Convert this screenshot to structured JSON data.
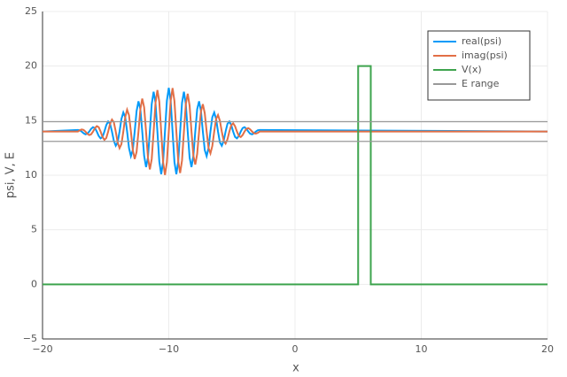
{
  "chart_data": {
    "type": "line",
    "xlabel": "x",
    "ylabel": "psi, V, E",
    "xlim": [
      -20,
      20
    ],
    "ylim": [
      -5,
      25
    ],
    "xticks": [
      {
        "value": -20,
        "label": "−20"
      },
      {
        "value": -10,
        "label": "−10"
      },
      0,
      10,
      20
    ],
    "yticks": [
      {
        "value": -5,
        "label": "−5"
      },
      0,
      5,
      10,
      15,
      20,
      25
    ],
    "grid": true,
    "legend": "top-right",
    "series": [
      {
        "name": "real(psi)",
        "color": "#009af9",
        "x": [
          -20,
          -17.2,
          -17.05,
          -16.9,
          -16.75,
          -16.6,
          -16.45,
          -16.3,
          -16.15,
          -16,
          -15.85,
          -15.7,
          -15.55,
          -15.4,
          -15.25,
          -15.1,
          -14.95,
          -14.8,
          -14.65,
          -14.5,
          -14.35,
          -14.2,
          -14.05,
          -13.9,
          -13.75,
          -13.6,
          -13.45,
          -13.3,
          -13.15,
          -13,
          -12.85,
          -12.7,
          -12.55,
          -12.4,
          -12.25,
          -12.1,
          -11.95,
          -11.8,
          -11.65,
          -11.5,
          -11.35,
          -11.2,
          -11.05,
          -10.9,
          -10.75,
          -10.6,
          -10.45,
          -10.3,
          -10.15,
          -10,
          -9.85,
          -9.7,
          -9.55,
          -9.4,
          -9.25,
          -9.1,
          -8.95,
          -8.8,
          -8.65,
          -8.5,
          -8.35,
          -8.2,
          -8.05,
          -7.9,
          -7.75,
          -7.6,
          -7.45,
          -7.3,
          -7.15,
          -7,
          -6.85,
          -6.7,
          -6.55,
          -6.4,
          -6.25,
          -6.1,
          -5.95,
          -5.8,
          -5.65,
          -5.5,
          -5.35,
          -5.2,
          -5.05,
          -4.9,
          -4.75,
          -4.6,
          -4.45,
          -4.3,
          -4.15,
          -4,
          -3.85,
          -3.7,
          -3.55,
          -3.4,
          -3.25,
          -3.1,
          -2.95,
          -2.8,
          20
        ],
        "values": [
          14,
          14.15,
          14.12,
          14,
          13.85,
          13.75,
          13.8,
          14,
          14.25,
          14.4,
          14.32,
          14,
          13.6,
          13.38,
          13.51,
          14,
          14.59,
          14.92,
          14.71,
          14,
          13.15,
          12.7,
          13.01,
          14,
          15.15,
          15.75,
          15.32,
          14,
          12.5,
          11.75,
          12.31,
          14,
          15.87,
          16.77,
          16.05,
          14,
          11.78,
          10.75,
          11.62,
          14,
          16.52,
          17.65,
          16.64,
          14,
          11.27,
          10.09,
          11.21,
          14,
          16.82,
          18,
          16.82,
          14,
          11.21,
          10.09,
          11.27,
          14,
          16.64,
          17.65,
          16.52,
          14,
          11.62,
          10.75,
          11.78,
          14,
          16.05,
          16.77,
          15.87,
          14,
          12.31,
          11.75,
          12.5,
          14,
          15.32,
          15.75,
          15.15,
          14,
          13.01,
          12.7,
          13.15,
          14,
          14.71,
          14.92,
          14.59,
          14,
          13.51,
          13.38,
          13.6,
          14,
          14.32,
          14.4,
          14.25,
          14,
          13.8,
          13.75,
          13.85,
          14,
          14.12,
          14.15,
          14
        ]
      },
      {
        "name": "imag(psi)",
        "color": "#e26f46",
        "x": [
          -20,
          -17.2,
          -17.05,
          -16.9,
          -16.75,
          -16.6,
          -16.45,
          -16.3,
          -16.15,
          -16,
          -15.85,
          -15.7,
          -15.55,
          -15.4,
          -15.25,
          -15.1,
          -14.95,
          -14.8,
          -14.65,
          -14.5,
          -14.35,
          -14.2,
          -14.05,
          -13.9,
          -13.75,
          -13.6,
          -13.45,
          -13.3,
          -13.15,
          -13,
          -12.85,
          -12.7,
          -12.55,
          -12.4,
          -12.25,
          -12.1,
          -11.95,
          -11.8,
          -11.65,
          -11.5,
          -11.35,
          -11.2,
          -11.05,
          -10.9,
          -10.75,
          -10.6,
          -10.45,
          -10.3,
          -10.15,
          -10,
          -9.85,
          -9.7,
          -9.55,
          -9.4,
          -9.25,
          -9.1,
          -8.95,
          -8.8,
          -8.65,
          -8.5,
          -8.35,
          -8.2,
          -8.05,
          -7.9,
          -7.75,
          -7.6,
          -7.45,
          -7.3,
          -7.15,
          -7,
          -6.85,
          -6.7,
          -6.55,
          -6.4,
          -6.25,
          -6.1,
          -5.95,
          -5.8,
          -5.65,
          -5.5,
          -5.35,
          -5.2,
          -5.05,
          -4.9,
          -4.75,
          -4.6,
          -4.45,
          -4.3,
          -4.15,
          -4,
          -3.85,
          -3.7,
          -3.55,
          -3.4,
          -3.25,
          -3.1,
          -2.95,
          -2.8,
          20
        ],
        "values": [
          14,
          14,
          14.12,
          14.19,
          14.15,
          14,
          13.8,
          13.68,
          13.75,
          14,
          14.32,
          14.5,
          14.4,
          14,
          13.51,
          13.24,
          13.41,
          14,
          14.71,
          15.1,
          14.85,
          14,
          13.01,
          12.48,
          12.85,
          14,
          15.32,
          16,
          15.5,
          14,
          12.31,
          11.49,
          12.13,
          14,
          16.05,
          17.02,
          16.22,
          14,
          11.62,
          10.53,
          11.48,
          14,
          16.64,
          17.8,
          16.73,
          14,
          11.21,
          10.02,
          11.18,
          14,
          16.82,
          17.98,
          16.79,
          14,
          11.27,
          10.2,
          11.36,
          14,
          16.52,
          17.47,
          16.38,
          14,
          11.78,
          10.98,
          11.95,
          14,
          15.87,
          16.51,
          15.69,
          14,
          12.5,
          12,
          12.68,
          14,
          15.15,
          15.52,
          14.99,
          14,
          13.15,
          12.9,
          13.29,
          14,
          14.59,
          14.76,
          14.49,
          14,
          13.6,
          13.5,
          13.68,
          14,
          14.25,
          14.32,
          14.2,
          14,
          13.85,
          13.81,
          13.88,
          14,
          14
        ]
      },
      {
        "name": "V(x)",
        "color": "#3ea44e",
        "x": [
          -20,
          5,
          5,
          6,
          6,
          20
        ],
        "values": [
          0,
          0,
          20,
          20,
          0,
          0
        ]
      },
      {
        "name": "E range",
        "color": "#999999",
        "x": [
          -20,
          20,
          null,
          -20,
          20
        ],
        "values": [
          14.9,
          14.9,
          null,
          13.1,
          13.1
        ]
      }
    ]
  }
}
